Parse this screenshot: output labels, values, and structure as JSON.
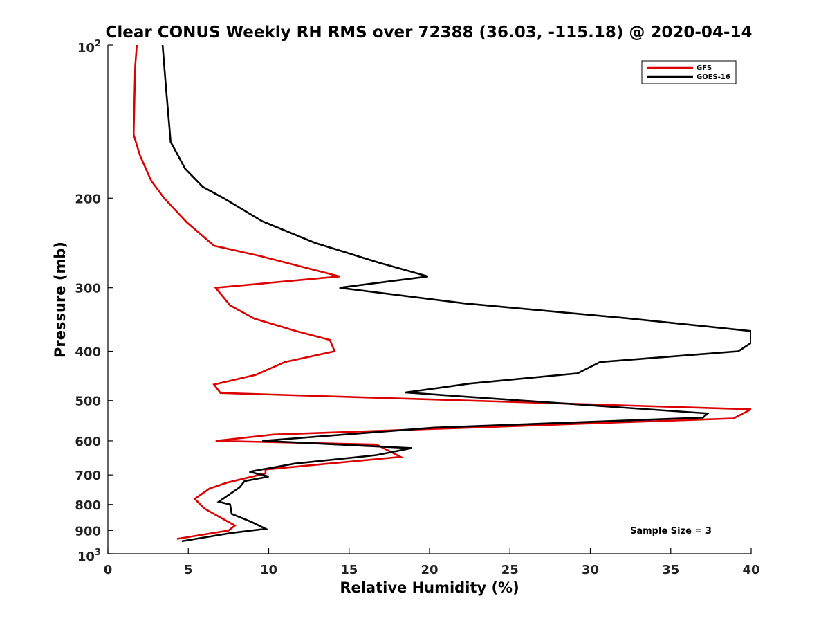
{
  "chart_data": {
    "type": "line",
    "title": "Clear CONUS Weekly RH RMS over 72388 (36.03, -115.18) @ 2020-04-14",
    "xlabel": "Relative Humidity (%)",
    "ylabel": "Pressure (mb)",
    "xlim": [
      0,
      40
    ],
    "ylim": [
      1000,
      100
    ],
    "yscale": "log",
    "y_reversed": true,
    "grid": false,
    "legend": "top-right",
    "x_ticks": [
      "0",
      "5",
      "10",
      "15",
      "20",
      "25",
      "30",
      "35",
      "40"
    ],
    "y_ticks": [
      {
        "value": 200,
        "label": "200"
      },
      {
        "value": 300,
        "label": "300"
      },
      {
        "value": 400,
        "label": "400"
      },
      {
        "value": 500,
        "label": "500"
      },
      {
        "value": 600,
        "label": "600"
      },
      {
        "value": 700,
        "label": "700"
      },
      {
        "value": 800,
        "label": "800"
      },
      {
        "value": 900,
        "label": "900"
      }
    ],
    "y_end_labels": {
      "top_base": "10",
      "top_exp": "2",
      "bottom_base": "10",
      "bottom_exp": "3"
    },
    "annotation": "Sample Size = 3",
    "series": [
      {
        "name": "GFS",
        "color": "#dd0000",
        "x": [
          1.8,
          1.7,
          1.6,
          2.0,
          2.7,
          3.5,
          4.9,
          6.6,
          9.5,
          14.4,
          6.7,
          7.6,
          9.1,
          11.7,
          13.8,
          14.1,
          11.0,
          9.2,
          6.6,
          7.0,
          40.0,
          38.9,
          10.3,
          6.7,
          16.7,
          18.2,
          9.8,
          9.8,
          7.4,
          6.3,
          5.4,
          6.0,
          7.9,
          7.5,
          4.3
        ],
        "y": [
          100,
          110,
          150,
          165,
          185,
          200,
          223,
          248,
          260,
          285,
          300,
          325,
          345,
          365,
          380,
          400,
          420,
          445,
          465,
          483,
          520,
          542,
          583,
          600,
          610,
          645,
          683,
          695,
          725,
          745,
          780,
          815,
          880,
          900,
          935
        ]
      },
      {
        "name": "GOES-16",
        "color": "#000000",
        "x": [
          3.4,
          3.6,
          3.9,
          4.8,
          5.9,
          7.2,
          9.6,
          12.9,
          16.9,
          19.9,
          14.4,
          22.2,
          32.5,
          40.0,
          40.0,
          39.2,
          30.6,
          29.2,
          22.5,
          18.5,
          37.3,
          37.0,
          20.3,
          9.6,
          18.9,
          16.7,
          11.6,
          8.8,
          10.0,
          8.5,
          8.2,
          6.9,
          7.6,
          7.7,
          8.9,
          9.8,
          7.7,
          4.6
        ],
        "y": [
          100,
          120,
          155,
          175,
          190,
          200,
          222,
          245,
          268,
          285,
          300,
          322,
          345,
          365,
          385,
          400,
          420,
          442,
          463,
          482,
          530,
          540,
          565,
          600,
          620,
          640,
          665,
          690,
          705,
          720,
          740,
          790,
          800,
          835,
          865,
          893,
          910,
          945
        ]
      }
    ]
  }
}
